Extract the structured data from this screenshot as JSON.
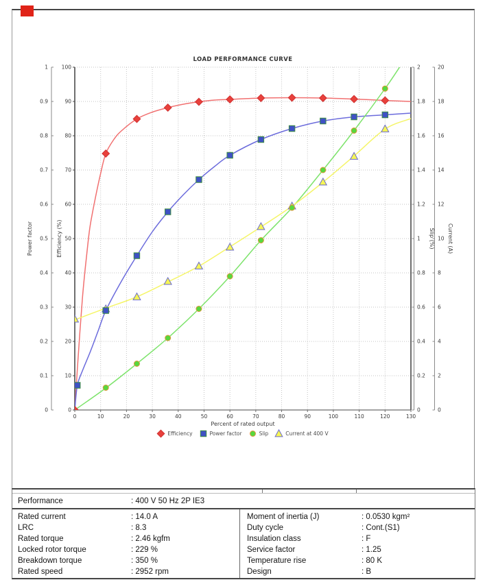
{
  "annotation": {
    "red_marker_color": "#e02318"
  },
  "chart_data": {
    "type": "line",
    "title": "LOAD PERFORMANCE CURVE",
    "xlabel": "Percent of rated output",
    "x_axis": {
      "min": 0,
      "max": 130,
      "step": 10
    },
    "grid": true,
    "legend_position": "bottom",
    "y_axes": [
      {
        "id": "power_factor",
        "label": "Power factor",
        "side": "left-outer",
        "min": 0,
        "max": 1,
        "step": 0.1
      },
      {
        "id": "efficiency",
        "label": "Efficiency (%)",
        "side": "left-inner",
        "min": 0,
        "max": 100,
        "step": 10
      },
      {
        "id": "slip",
        "label": "Slip (%)",
        "side": "right-inner",
        "min": 0,
        "max": 2,
        "step": 0.2
      },
      {
        "id": "current",
        "label": "Current (A)",
        "side": "right-outer",
        "min": 0,
        "max": 20,
        "step": 2
      }
    ],
    "series": [
      {
        "name": "Efficiency",
        "axis": "efficiency",
        "marker": "diamond",
        "marker_color": "#e8413c",
        "marker_stroke": "#d03030",
        "line_color": "#f17070",
        "marker_points": [
          [
            0,
            0
          ],
          [
            12,
            74.8
          ],
          [
            24,
            84.9
          ],
          [
            36,
            88.2
          ],
          [
            48,
            89.9
          ],
          [
            60,
            90.6
          ],
          [
            72,
            91.0
          ],
          [
            84,
            91.1
          ],
          [
            96,
            91.0
          ],
          [
            108,
            90.7
          ],
          [
            120,
            90.3
          ]
        ],
        "line_points": [
          [
            0,
            0
          ],
          [
            1,
            12
          ],
          [
            2,
            23
          ],
          [
            3,
            33
          ],
          [
            4,
            41
          ],
          [
            5,
            48
          ],
          [
            6,
            54
          ],
          [
            8,
            62
          ],
          [
            10,
            69
          ],
          [
            12,
            74.8
          ],
          [
            15,
            78.8
          ],
          [
            18,
            81.4
          ],
          [
            24,
            84.9
          ],
          [
            30,
            86.9
          ],
          [
            36,
            88.2
          ],
          [
            42,
            89.2
          ],
          [
            48,
            89.9
          ],
          [
            54,
            90.4
          ],
          [
            60,
            90.6
          ],
          [
            72,
            91.0
          ],
          [
            84,
            91.1
          ],
          [
            96,
            91.0
          ],
          [
            108,
            90.7
          ],
          [
            120,
            90.3
          ],
          [
            130,
            90.0
          ]
        ]
      },
      {
        "name": "Power factor",
        "axis": "power_factor",
        "marker": "square",
        "marker_color": "#3f51c4",
        "marker_stroke": "#3e8e41",
        "line_color": "#6b6bdc",
        "marker_points": [
          [
            1,
            0.072
          ],
          [
            12,
            0.29
          ],
          [
            24,
            0.45
          ],
          [
            36,
            0.578
          ],
          [
            48,
            0.672
          ],
          [
            60,
            0.743
          ],
          [
            72,
            0.789
          ],
          [
            84,
            0.821
          ],
          [
            96,
            0.843
          ],
          [
            108,
            0.855
          ],
          [
            120,
            0.861
          ]
        ],
        "line_points": [
          [
            0,
            0
          ],
          [
            1,
            0.072
          ],
          [
            3,
            0.115
          ],
          [
            6,
            0.17
          ],
          [
            9,
            0.23
          ],
          [
            12,
            0.29
          ],
          [
            18,
            0.375
          ],
          [
            24,
            0.45
          ],
          [
            30,
            0.52
          ],
          [
            36,
            0.578
          ],
          [
            42,
            0.628
          ],
          [
            48,
            0.672
          ],
          [
            54,
            0.71
          ],
          [
            60,
            0.743
          ],
          [
            72,
            0.789
          ],
          [
            84,
            0.821
          ],
          [
            96,
            0.843
          ],
          [
            108,
            0.855
          ],
          [
            120,
            0.861
          ],
          [
            130,
            0.866
          ]
        ]
      },
      {
        "name": "Slip",
        "axis": "slip",
        "marker": "circle",
        "marker_color": "#57d83e",
        "marker_stroke": "#e0963c",
        "line_color": "#7ce36a",
        "marker_points": [
          [
            12,
            0.13
          ],
          [
            24,
            0.27
          ],
          [
            36,
            0.42
          ],
          [
            48,
            0.59
          ],
          [
            60,
            0.78
          ],
          [
            72,
            0.99
          ],
          [
            84,
            1.18
          ],
          [
            96,
            1.4
          ],
          [
            108,
            1.63
          ],
          [
            120,
            1.875
          ]
        ],
        "line_points": [
          [
            0,
            0
          ],
          [
            12,
            0.128
          ],
          [
            24,
            0.27
          ],
          [
            36,
            0.42
          ],
          [
            48,
            0.59
          ],
          [
            60,
            0.78
          ],
          [
            72,
            0.99
          ],
          [
            84,
            1.18
          ],
          [
            96,
            1.4
          ],
          [
            108,
            1.63
          ],
          [
            120,
            1.875
          ],
          [
            126.5,
            2.02
          ]
        ]
      },
      {
        "name": "Current at 400 V",
        "axis": "current",
        "marker": "triangle",
        "marker_color": "#f6f655",
        "marker_stroke": "#6a6acc",
        "line_color": "#f5f568",
        "marker_points": [
          [
            0,
            5.3
          ],
          [
            12,
            5.9
          ],
          [
            24,
            6.6
          ],
          [
            36,
            7.5
          ],
          [
            48,
            8.4
          ],
          [
            60,
            9.5
          ],
          [
            72,
            10.7
          ],
          [
            84,
            11.9
          ],
          [
            96,
            13.3
          ],
          [
            108,
            14.8
          ],
          [
            120,
            16.4
          ]
        ],
        "line_points": [
          [
            0,
            5.26
          ],
          [
            12,
            5.94
          ],
          [
            24,
            6.6
          ],
          [
            36,
            7.47
          ],
          [
            48,
            8.39
          ],
          [
            60,
            9.52
          ],
          [
            72,
            10.68
          ],
          [
            84,
            11.89
          ],
          [
            96,
            13.29
          ],
          [
            108,
            14.82
          ],
          [
            120,
            16.39
          ],
          [
            130,
            17.0
          ]
        ]
      }
    ]
  },
  "table": {
    "performance_label": "Performance",
    "performance_value": ": 400 V 50 Hz 2P IE3",
    "left_rows": [
      {
        "label": "Rated current",
        "value": ": 14.0 A"
      },
      {
        "label": "LRC",
        "value": ": 8.3"
      },
      {
        "label": "Rated torque",
        "value": ": 2.46 kgfm"
      },
      {
        "label": "Locked rotor torque",
        "value": ": 229 %"
      },
      {
        "label": "Breakdown torque",
        "value": ": 350 %"
      },
      {
        "label": "Rated speed",
        "value": ": 2952 rpm"
      }
    ],
    "right_rows": [
      {
        "label": "Moment of inertia (J)",
        "value": ": 0.0530 kgm²"
      },
      {
        "label": "Duty cycle",
        "value": ": Cont.(S1)"
      },
      {
        "label": "Insulation class",
        "value": ": F"
      },
      {
        "label": "Service factor",
        "value": ": 1.25"
      },
      {
        "label": "Temperature rise",
        "value": ": 80 K"
      },
      {
        "label": "Design",
        "value": ": B"
      }
    ]
  }
}
